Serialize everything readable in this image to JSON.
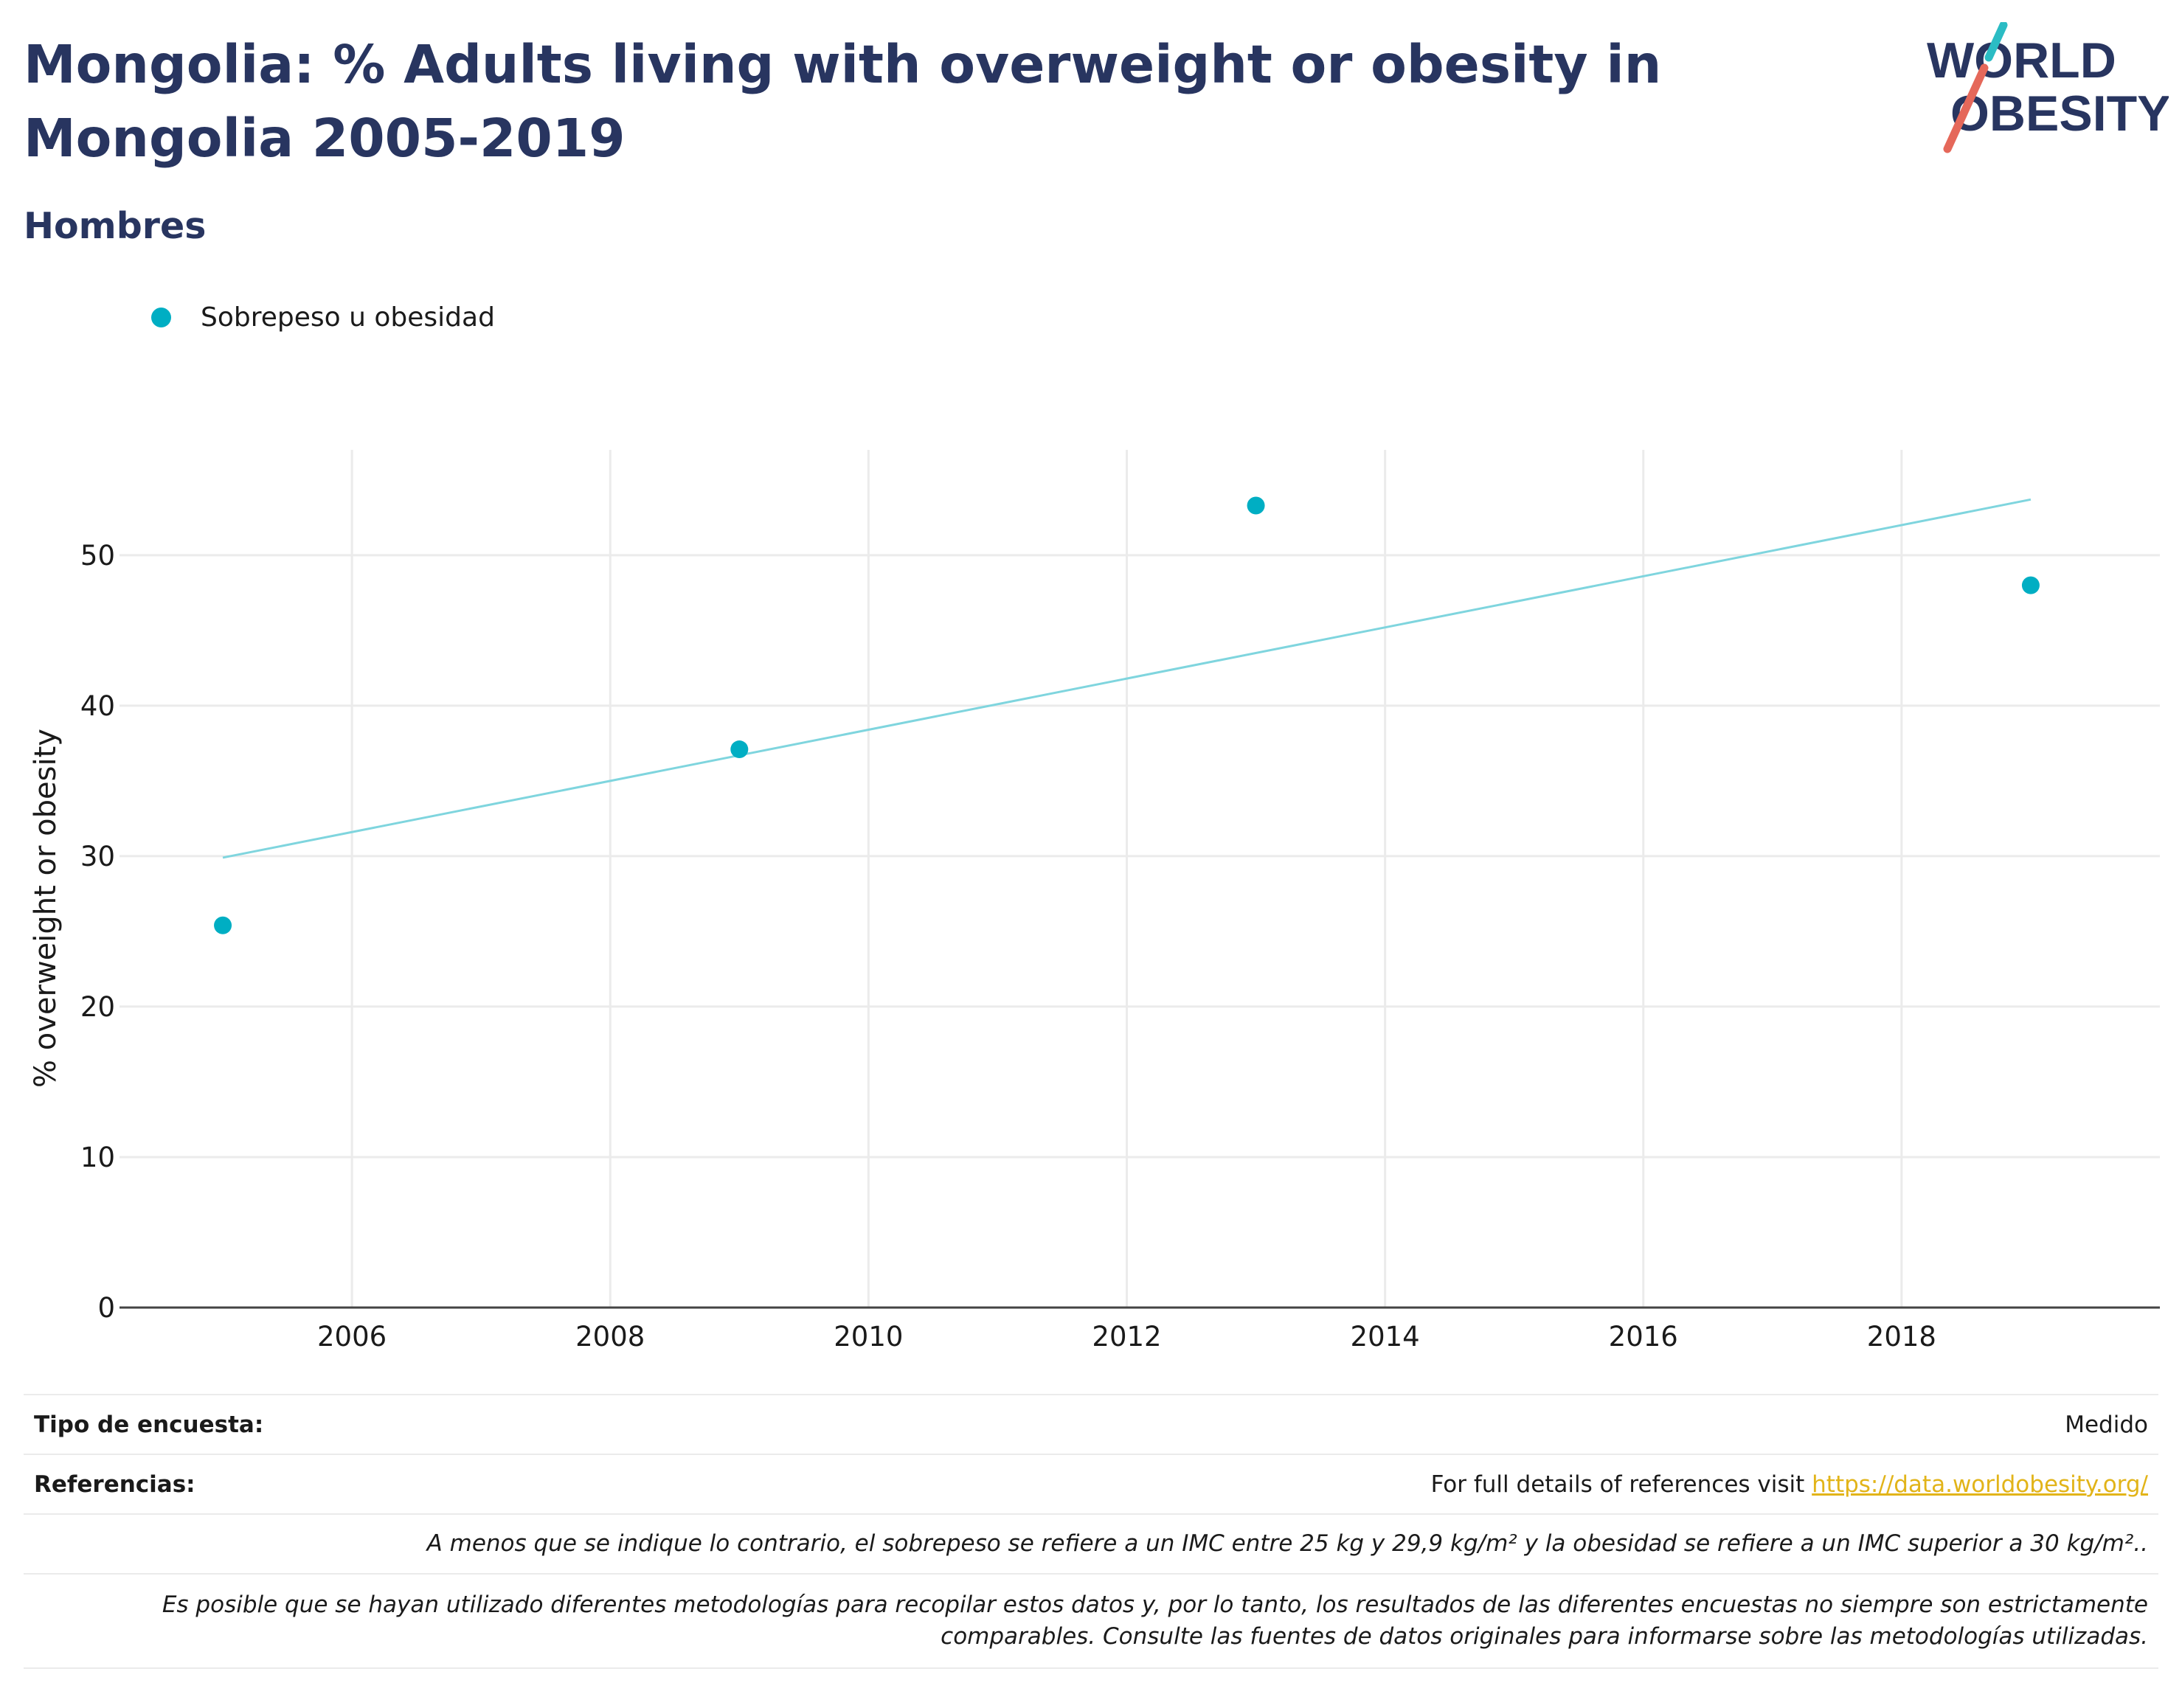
{
  "header": {
    "title": "Mongolia: % Adults living with overweight or obesity in Mongolia 2005-2019",
    "subtitle": "Hombres"
  },
  "logo": {
    "line1": "WORLD",
    "line2": "OBESITY",
    "colors": {
      "text": "#283560",
      "slash_top": "#2bbcc4",
      "slash_bottom": "#e5685a"
    }
  },
  "legend": {
    "label": "Sobrepeso u obesidad"
  },
  "chart_data": {
    "type": "scatter",
    "ylabel": "% overweight or obesity",
    "xlabel": "",
    "xlim": [
      2004.2,
      2020.0
    ],
    "ylim": [
      0,
      57
    ],
    "xticks": [
      "2006",
      "2008",
      "2010",
      "2012",
      "2014",
      "2016",
      "2018"
    ],
    "yticks": [
      "0",
      "10",
      "20",
      "30",
      "40",
      "50"
    ],
    "series": [
      {
        "name": "Sobrepeso u obesidad",
        "color": "#00aec3",
        "x": [
          2005,
          2009,
          2013,
          2019
        ],
        "y": [
          25.4,
          37.1,
          53.3,
          48.0
        ]
      }
    ],
    "trendline": {
      "color": "#7fd5de",
      "x": [
        2005,
        2019
      ],
      "y": [
        29.9,
        53.7
      ]
    },
    "grid": true
  },
  "info": {
    "survey_label": "Tipo de encuesta:",
    "survey_value": "Medido",
    "refs_label": "Referencias:",
    "refs_text": "For full details of references visit ",
    "refs_link": "https://data.worldobesity.org/",
    "note1": "A menos que se indique lo contrario, el sobrepeso se refiere a un IMC entre 25 kg y 29,9 kg/m² y la obesidad se refiere a un IMC superior a 30 kg/m²..",
    "note2a": "Es posible que se hayan utilizado diferentes metodologías para recopilar estos datos y, por lo tanto, los resultados de las diferentes encuestas no siempre son estrictamente",
    "note2b": "comparables. Consulte las fuentes de datos originales para informarse sobre las metodologías utilizadas."
  }
}
